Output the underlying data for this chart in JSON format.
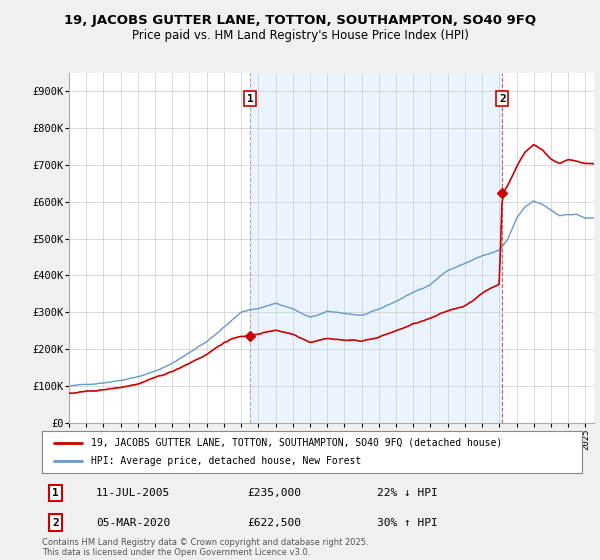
{
  "title_line1": "19, JACOBS GUTTER LANE, TOTTON, SOUTHAMPTON, SO40 9FQ",
  "title_line2": "Price paid vs. HM Land Registry's House Price Index (HPI)",
  "red_label": "19, JACOBS GUTTER LANE, TOTTON, SOUTHAMPTON, SO40 9FQ (detached house)",
  "blue_label": "HPI: Average price, detached house, New Forest",
  "annotation1_date": "11-JUL-2005",
  "annotation1_price": "£235,000",
  "annotation1_hpi": "22% ↓ HPI",
  "annotation2_date": "05-MAR-2020",
  "annotation2_price": "£622,500",
  "annotation2_hpi": "30% ↑ HPI",
  "footnote": "Contains HM Land Registry data © Crown copyright and database right 2025.\nThis data is licensed under the Open Government Licence v3.0.",
  "ylim": [
    0,
    950000
  ],
  "yticks": [
    0,
    100000,
    200000,
    300000,
    400000,
    500000,
    600000,
    700000,
    800000,
    900000
  ],
  "ytick_labels": [
    "£0",
    "£100K",
    "£200K",
    "£300K",
    "£400K",
    "£500K",
    "£600K",
    "£700K",
    "£800K",
    "£900K"
  ],
  "background_color": "#f0f0f0",
  "plot_bg_color": "#ffffff",
  "shade_color": "#ddeeff",
  "red_color": "#cc0000",
  "blue_color": "#6699cc",
  "vline_color": "#aaaaaa",
  "vline1_x": 2005.53,
  "vline2_x": 2020.17,
  "marker1_red_y": 235000,
  "marker2_red_y": 622500,
  "sale1_x": 2005.53,
  "sale2_x": 2020.17,
  "xmin": 1995,
  "xmax": 2025.5
}
